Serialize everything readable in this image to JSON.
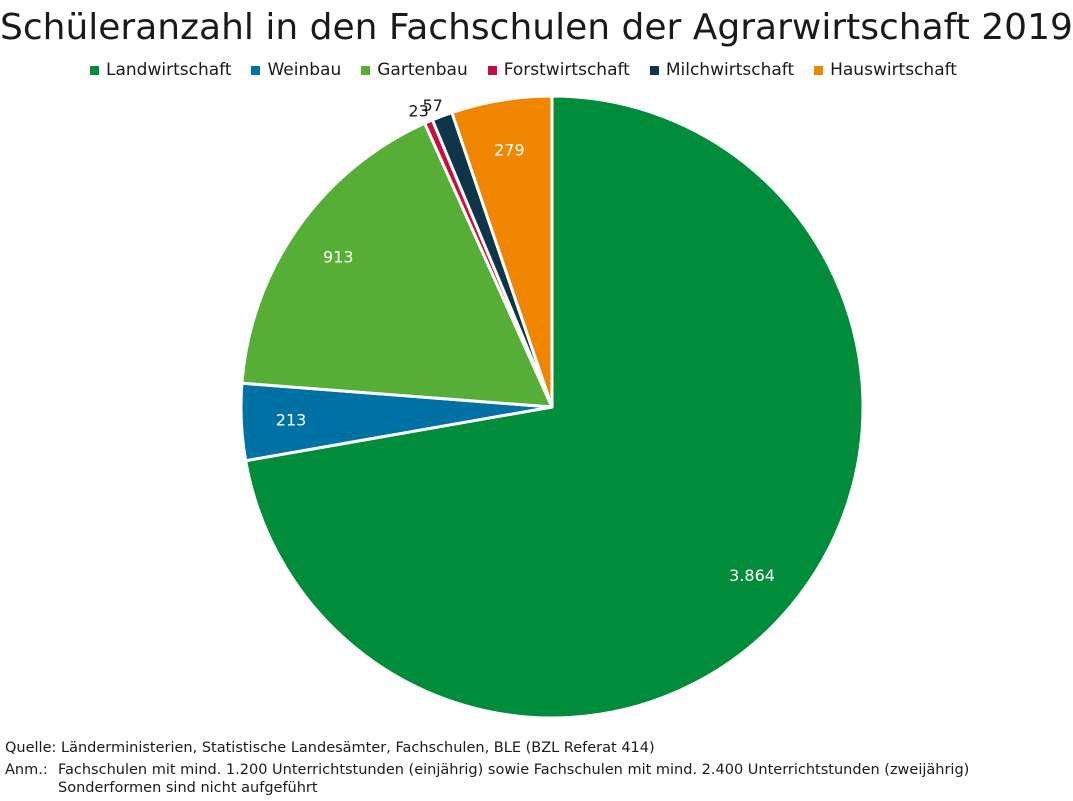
{
  "title": "Schüleranzahl in den Fachschulen der Agrarwirtschaft 2019",
  "colors": {
    "Landwirtschaft": "#008c3a",
    "Weinbau": "#0071a4",
    "Gartenbau": "#56ae36",
    "Forstwirtschaft": "#c70e3e",
    "Milchwirtschaft": "#0e3648",
    "Hauswirtschaft": "#f08600"
  },
  "chart_data": {
    "type": "pie",
    "title": "Schüleranzahl in den Fachschulen der Agrarwirtschaft 2019",
    "legend_position": "top",
    "start": "12 o'clock, clockwise",
    "slices": [
      {
        "label": "Landwirtschaft",
        "value": 3864,
        "value_label": "3.864"
      },
      {
        "label": "Weinbau",
        "value": 213,
        "value_label": "213"
      },
      {
        "label": "Gartenbau",
        "value": 913,
        "value_label": "913"
      },
      {
        "label": "Forstwirtschaft",
        "value": 23,
        "value_label": "23"
      },
      {
        "label": "Milchwirtschaft",
        "value": 57,
        "value_label": "57"
      },
      {
        "label": "Hauswirtschaft",
        "value": 279,
        "value_label": "279"
      }
    ]
  },
  "footnotes": {
    "source": "Quelle: Länderministerien, Statistische Landesämter, Fachschulen, BLE (BZL Referat 414)",
    "note_label": "Anm.:",
    "note_line1": "Fachschulen mit mind. 1.200 Unterrichtstunden (einjährig) sowie Fachschulen mit mind. 2.400 Unterrichtstunden (zweijährig)",
    "note_line2": "Sonderformen sind nicht aufgeführt"
  }
}
